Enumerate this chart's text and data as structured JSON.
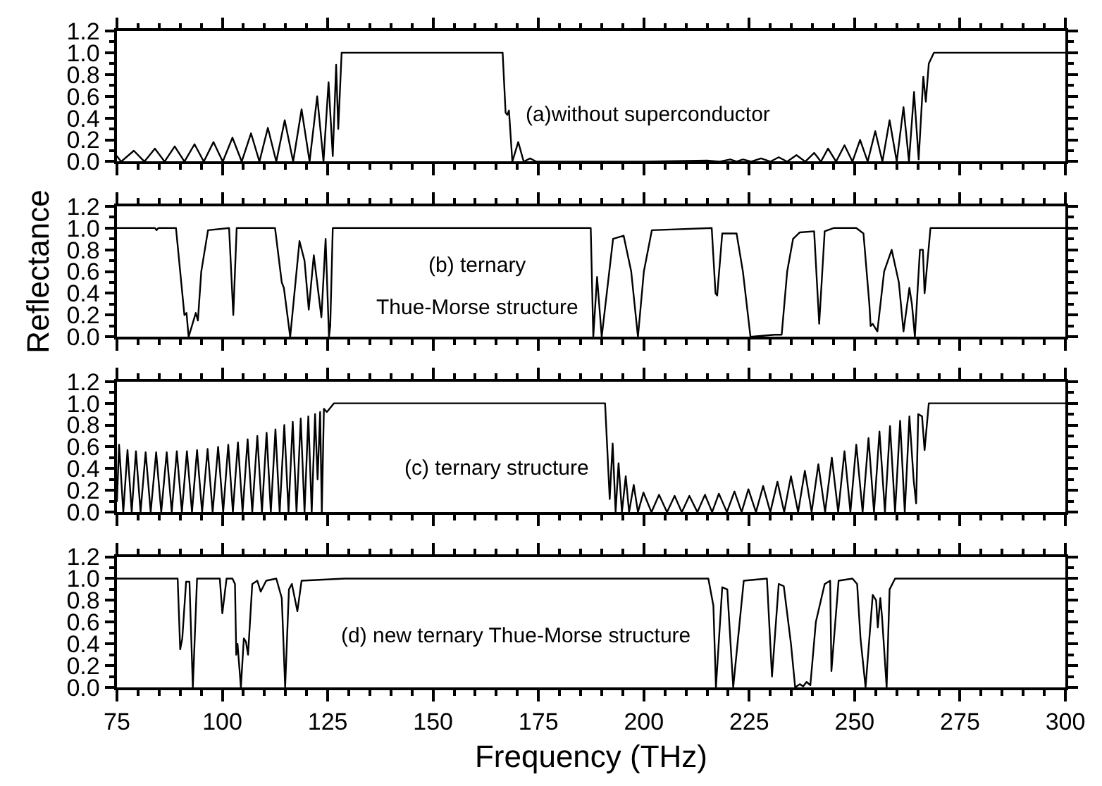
{
  "chart_data": [
    {
      "type": "line",
      "annotations": [
        "(a)without superconductor"
      ],
      "tick_labels": "y",
      "xlim": [
        75,
        300
      ],
      "xticks": [
        75,
        100,
        125,
        150,
        175,
        200,
        225,
        250,
        275,
        300
      ],
      "ylim": [
        0,
        1.2
      ],
      "yticks": [
        {
          "value": 0,
          "label": "0.0"
        },
        {
          "value": 0.2,
          "label": "0.2"
        },
        {
          "value": 0.4,
          "label": "0.4"
        },
        {
          "value": 0.6,
          "label": "0.6"
        },
        {
          "value": 0.8,
          "label": "0.8"
        },
        {
          "value": 1,
          "label": "1.0"
        },
        {
          "value": 1.2,
          "label": "1.2"
        }
      ],
      "x": [
        75,
        76,
        79,
        81.5,
        84,
        86.3,
        88.7,
        91,
        93.4,
        95.6,
        97.9,
        100.1,
        102.4,
        104.6,
        106.8,
        108.8,
        110.8,
        112.8,
        114.8,
        116.8,
        118.8,
        120.7,
        122.5,
        124,
        125.2,
        126.2,
        127,
        127.5,
        128.3,
        166.5,
        167.2,
        167.6,
        168,
        168.8,
        170.2,
        171.5,
        173,
        174.5,
        200,
        215,
        218,
        220.5,
        222,
        223.5,
        225.5,
        227.8,
        230,
        232,
        234,
        236.2,
        238.3,
        240.4,
        242,
        243.7,
        245.6,
        247.6,
        249.5,
        251.3,
        253.1,
        254.9,
        256.6,
        258.3,
        260,
        261.6,
        262.9,
        264.1,
        265.2,
        266.3,
        266.9,
        267.6,
        268.8,
        300
      ],
      "series": [
        {
          "color": "#000000",
          "values": [
            0.05,
            0,
            0.1,
            0,
            0.12,
            0,
            0.14,
            0,
            0.16,
            0,
            0.18,
            0,
            0.22,
            0,
            0.26,
            0,
            0.31,
            0,
            0.38,
            0,
            0.48,
            0,
            0.6,
            0,
            0.73,
            0.05,
            0.89,
            0.3,
            1.0,
            1.0,
            0.45,
            0.43,
            0.47,
            0,
            0.18,
            0,
            0.03,
            0,
            0,
            0.01,
            0,
            0.02,
            0,
            0.02,
            0,
            0.03,
            0,
            0.04,
            0,
            0.06,
            0,
            0.08,
            0,
            0.12,
            0,
            0.15,
            0,
            0.2,
            0,
            0.28,
            0,
            0.38,
            0,
            0.5,
            0,
            0.64,
            0.02,
            0.78,
            0.55,
            0.9,
            1.0,
            1.0
          ]
        }
      ]
    },
    {
      "type": "line",
      "ylabel": "Reflectance",
      "annotations": [
        "(b) ternary",
        "Thue-Morse structure"
      ],
      "tick_labels": "y",
      "xlim": [
        75,
        300
      ],
      "xticks": [
        75,
        100,
        125,
        150,
        175,
        200,
        225,
        250,
        275,
        300
      ],
      "ylim": [
        0,
        1.2
      ],
      "yticks": [
        {
          "value": 0,
          "label": "0.0"
        },
        {
          "value": 0.2,
          "label": "0.2"
        },
        {
          "value": 0.4,
          "label": "0.4"
        },
        {
          "value": 0.6,
          "label": "0.6"
        },
        {
          "value": 0.8,
          "label": "0.8"
        },
        {
          "value": 1,
          "label": "1.0"
        },
        {
          "value": 1.2,
          "label": "1.2"
        }
      ],
      "x": [
        75,
        84,
        84.4,
        84.8,
        89,
        90,
        91,
        91.5,
        92,
        93.7,
        94.2,
        95,
        96.6,
        101.6,
        102.6,
        103.4,
        112.5,
        114.1,
        114.6,
        116.1,
        118.3,
        119.5,
        120.5,
        121.7,
        123.5,
        124.5,
        125.3,
        125.6,
        126.2,
        187.4,
        188,
        188.9,
        190,
        192.7,
        195.2,
        197,
        198.6,
        200,
        201.9,
        216.1,
        217,
        217.4,
        218.6,
        222,
        223.5,
        225.3,
        231,
        232.7,
        234,
        235.4,
        237,
        240.4,
        241.6,
        242.9,
        245,
        250.4,
        252.1,
        253.5,
        253.8,
        254.3,
        255.4,
        257,
        258.8,
        260.5,
        261.6,
        263,
        263.6,
        264.3,
        265.5,
        266.2,
        266.6,
        268,
        300
      ],
      "series": [
        {
          "color": "#000000",
          "values": [
            1,
            1,
            0.98,
            1,
            1,
            0.6,
            0.2,
            0.22,
            0,
            0.22,
            0.15,
            0.6,
            0.98,
            1,
            0.2,
            1,
            1,
            0.5,
            0.45,
            0,
            0.88,
            0.7,
            0.25,
            0.75,
            0.18,
            0.9,
            0,
            0.1,
            1,
            1,
            0,
            0.55,
            0,
            0.9,
            0.93,
            0.6,
            0,
            0.6,
            0.98,
            1,
            0.4,
            0.38,
            0.95,
            0.95,
            0.6,
            0,
            0.02,
            0.02,
            0.6,
            0.9,
            0.96,
            0.97,
            0.12,
            0.97,
            1,
            1,
            0.95,
            0.3,
            0.1,
            0.12,
            0.05,
            0.6,
            0.8,
            0.5,
            0.05,
            0.45,
            0.3,
            0,
            0.8,
            0.8,
            0.4,
            1,
            1
          ]
        }
      ]
    },
    {
      "type": "line",
      "annotations": [
        "(c) ternary structure"
      ],
      "tick_labels": "y",
      "xlim": [
        75,
        300
      ],
      "xticks": [
        75,
        100,
        125,
        150,
        175,
        200,
        225,
        250,
        275,
        300
      ],
      "ylim": [
        0,
        1.2
      ],
      "yticks": [
        {
          "value": 0,
          "label": "0.0"
        },
        {
          "value": 0.2,
          "label": "0.2"
        },
        {
          "value": 0.4,
          "label": "0.4"
        },
        {
          "value": 0.6,
          "label": "0.6"
        },
        {
          "value": 0.8,
          "label": "0.8"
        },
        {
          "value": 1,
          "label": "1.0"
        },
        {
          "value": 1.2,
          "label": "1.2"
        }
      ],
      "x": [
        75,
        75.5,
        76.5,
        77.5,
        78.5,
        79.5,
        80.6,
        81.8,
        83,
        84.3,
        85.5,
        86.8,
        88,
        89.2,
        90.4,
        91.6,
        92.8,
        94,
        95.2,
        96.5,
        97.7,
        99,
        100.2,
        101.4,
        102.5,
        103.7,
        104.8,
        106,
        107.1,
        108.3,
        109.4,
        110.5,
        111.5,
        112.6,
        113.6,
        114.7,
        115.7,
        116.7,
        117.6,
        118.6,
        119.5,
        120.4,
        121.2,
        122,
        122.6,
        123.2,
        123.6,
        124.1,
        124.8,
        126.5,
        190.8,
        191.9,
        192.6,
        193.3,
        194,
        194.8,
        195.7,
        196.5,
        197.6,
        198.6,
        199.9,
        201.8,
        203.6,
        205.5,
        207.3,
        209,
        210.8,
        212.7,
        214.5,
        216.2,
        217.8,
        219.7,
        221.5,
        223.2,
        224.8,
        226.6,
        228.3,
        230,
        231.7,
        233.3,
        234.9,
        236.6,
        238.2,
        239.8,
        241.4,
        243,
        244.6,
        246.1,
        247.6,
        249,
        250.4,
        251.9,
        253.3,
        254.6,
        255.9,
        257.2,
        258.4,
        259.6,
        260.8,
        261.9,
        263,
        264,
        264.6,
        265.1,
        266,
        266.6,
        267.6,
        300
      ],
      "series": [
        {
          "color": "#000000",
          "values": [
            0.1,
            0.62,
            0,
            0.57,
            0,
            0.56,
            0,
            0.55,
            0,
            0.55,
            0,
            0.55,
            0,
            0.56,
            0,
            0.56,
            0,
            0.57,
            0,
            0.58,
            0,
            0.6,
            0,
            0.62,
            0,
            0.64,
            0,
            0.67,
            0,
            0.7,
            0,
            0.73,
            0,
            0.76,
            0,
            0.8,
            0,
            0.83,
            0,
            0.86,
            0,
            0.88,
            0,
            0.9,
            0.3,
            0.92,
            0,
            0.95,
            0.92,
            1,
            1,
            0.12,
            0.63,
            0,
            0.45,
            0,
            0.33,
            0,
            0.25,
            0,
            0.18,
            0,
            0.16,
            0,
            0.15,
            0,
            0.15,
            0,
            0.16,
            0,
            0.17,
            0,
            0.19,
            0,
            0.21,
            0,
            0.24,
            0,
            0.28,
            0,
            0.33,
            0,
            0.38,
            0,
            0.44,
            0,
            0.5,
            0,
            0.56,
            0,
            0.62,
            0,
            0.68,
            0,
            0.74,
            0,
            0.79,
            0,
            0.84,
            0,
            0.88,
            0.3,
            0.08,
            0.9,
            0.88,
            0.57,
            1,
            1
          ]
        }
      ]
    },
    {
      "type": "line",
      "xlabel": "Frequency (THz)",
      "annotations": [
        "(d) new ternary Thue-Morse structure"
      ],
      "xlim": [
        75,
        300
      ],
      "xticks": [
        75,
        100,
        125,
        150,
        175,
        200,
        225,
        250,
        275,
        300
      ],
      "ylim": [
        0,
        1.2
      ],
      "yticks": [
        {
          "value": 0,
          "label": "0.0"
        },
        {
          "value": 0.2,
          "label": "0.2"
        },
        {
          "value": 0.4,
          "label": "0.4"
        },
        {
          "value": 0.6,
          "label": "0.6"
        },
        {
          "value": 0.8,
          "label": "0.8"
        },
        {
          "value": 1,
          "label": "1.0"
        },
        {
          "value": 1.2,
          "label": "1.2"
        }
      ],
      "x": [
        75,
        89.4,
        90,
        90.5,
        91.4,
        92.2,
        93,
        94,
        99.4,
        100,
        101,
        102.4,
        103,
        103.3,
        103.6,
        104.4,
        105.1,
        105.6,
        106.1,
        107.1,
        108.3,
        109.1,
        110.4,
        112.8,
        114.1,
        114.9,
        115.8,
        116.5,
        117.8,
        118.8,
        129,
        215.3,
        216.5,
        217.1,
        218.6,
        219.8,
        221.2,
        223.7,
        229.2,
        230.4,
        232,
        233.2,
        234.9,
        235.9,
        237,
        237.8,
        238.6,
        239.5,
        240.8,
        242.9,
        244.2,
        244.5,
        246.2,
        249.5,
        250.6,
        251.4,
        252.6,
        254.3,
        255.1,
        255.5,
        256.1,
        256.5,
        257.6,
        258.3,
        259.6,
        300
      ],
      "series": [
        {
          "color": "#000000",
          "values": [
            1,
            1,
            0.35,
            0.45,
            0.97,
            0.97,
            0,
            1,
            1,
            0.68,
            1,
            1,
            0.95,
            0.3,
            0.4,
            0,
            0.45,
            0.42,
            0.3,
            0.95,
            0.98,
            0.88,
            0.98,
            1,
            0.82,
            0,
            0.9,
            0.95,
            0.7,
            0.98,
            1,
            1,
            0.75,
            0,
            0.92,
            0.9,
            0,
            0.98,
            1,
            0.1,
            0.95,
            0.93,
            0.4,
            0,
            0.03,
            0.01,
            0.05,
            0.02,
            0.6,
            0.95,
            0.98,
            0.15,
            0.98,
            1,
            0.95,
            0.45,
            0,
            0.85,
            0.8,
            0.55,
            0.82,
            0.65,
            0,
            0.9,
            1,
            1
          ]
        }
      ]
    }
  ]
}
